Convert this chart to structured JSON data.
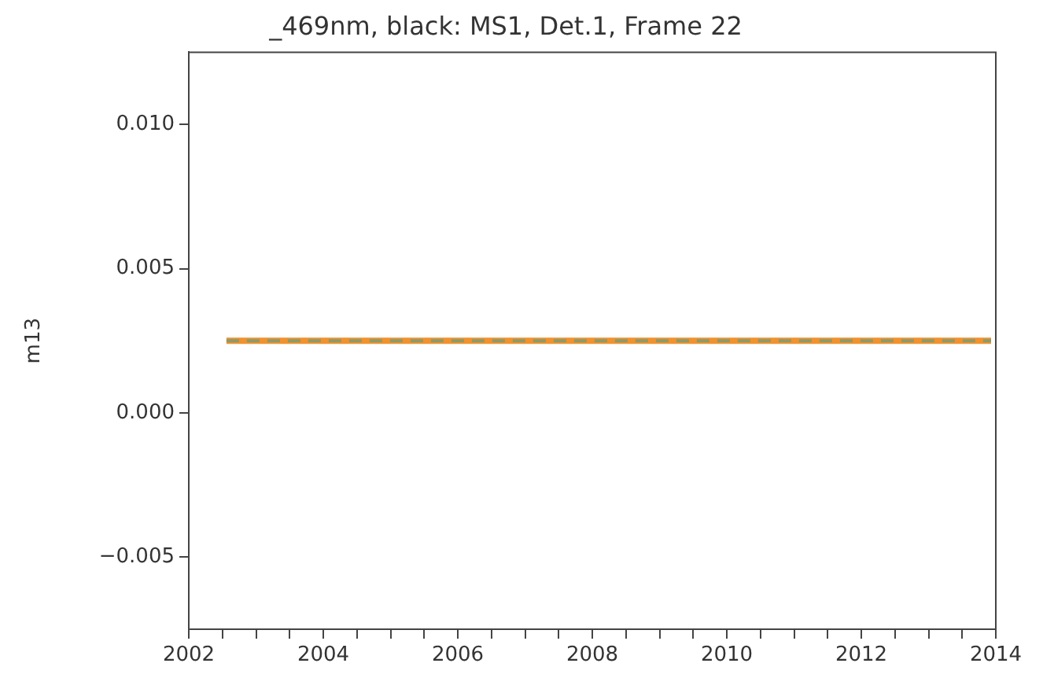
{
  "chart_data": {
    "type": "line",
    "title": "_469nm, black: MS1, Det.1, Frame 22",
    "ylabel": "m13",
    "x": [
      2002.56,
      2013.93
    ],
    "series": [
      {
        "color": "#f0922e",
        "values": [
          0.0025,
          0.0025
        ]
      },
      {
        "color": "#8c9a6a",
        "values": [
          0.0025,
          0.0025
        ],
        "line_style": "dashed"
      }
    ],
    "xlim": [
      2002,
      2014
    ],
    "xticks": [
      2002,
      {
        "value": 2002.5,
        "label": null
      },
      {
        "value": 2003,
        "label": null
      },
      {
        "value": 2003.5,
        "label": null
      },
      2004,
      {
        "value": 2004.5,
        "label": null
      },
      {
        "value": 2005,
        "label": null
      },
      {
        "value": 2005.5,
        "label": null
      },
      2006,
      {
        "value": 2006.5,
        "label": null
      },
      {
        "value": 2007,
        "label": null
      },
      {
        "value": 2007.5,
        "label": null
      },
      2008,
      {
        "value": 2008.5,
        "label": null
      },
      {
        "value": 2009,
        "label": null
      },
      {
        "value": 2009.5,
        "label": null
      },
      2010,
      {
        "value": 2010.5,
        "label": null
      },
      {
        "value": 2011,
        "label": null
      },
      {
        "value": 2011.5,
        "label": null
      },
      2012,
      {
        "value": 2012.5,
        "label": null
      },
      {
        "value": 2013,
        "label": null
      },
      {
        "value": 2013.5,
        "label": null
      },
      2014
    ],
    "ylim": [
      -0.0075,
      0.0125
    ],
    "yticks": [
      {
        "value": -0.005,
        "label": "−0.005"
      },
      {
        "value": 0,
        "label": "0.000"
      },
      {
        "value": 0.005,
        "label": "0.005"
      },
      {
        "value": 0.01,
        "label": "0.010"
      }
    ],
    "grid": false,
    "legend": false,
    "marker": "none"
  }
}
